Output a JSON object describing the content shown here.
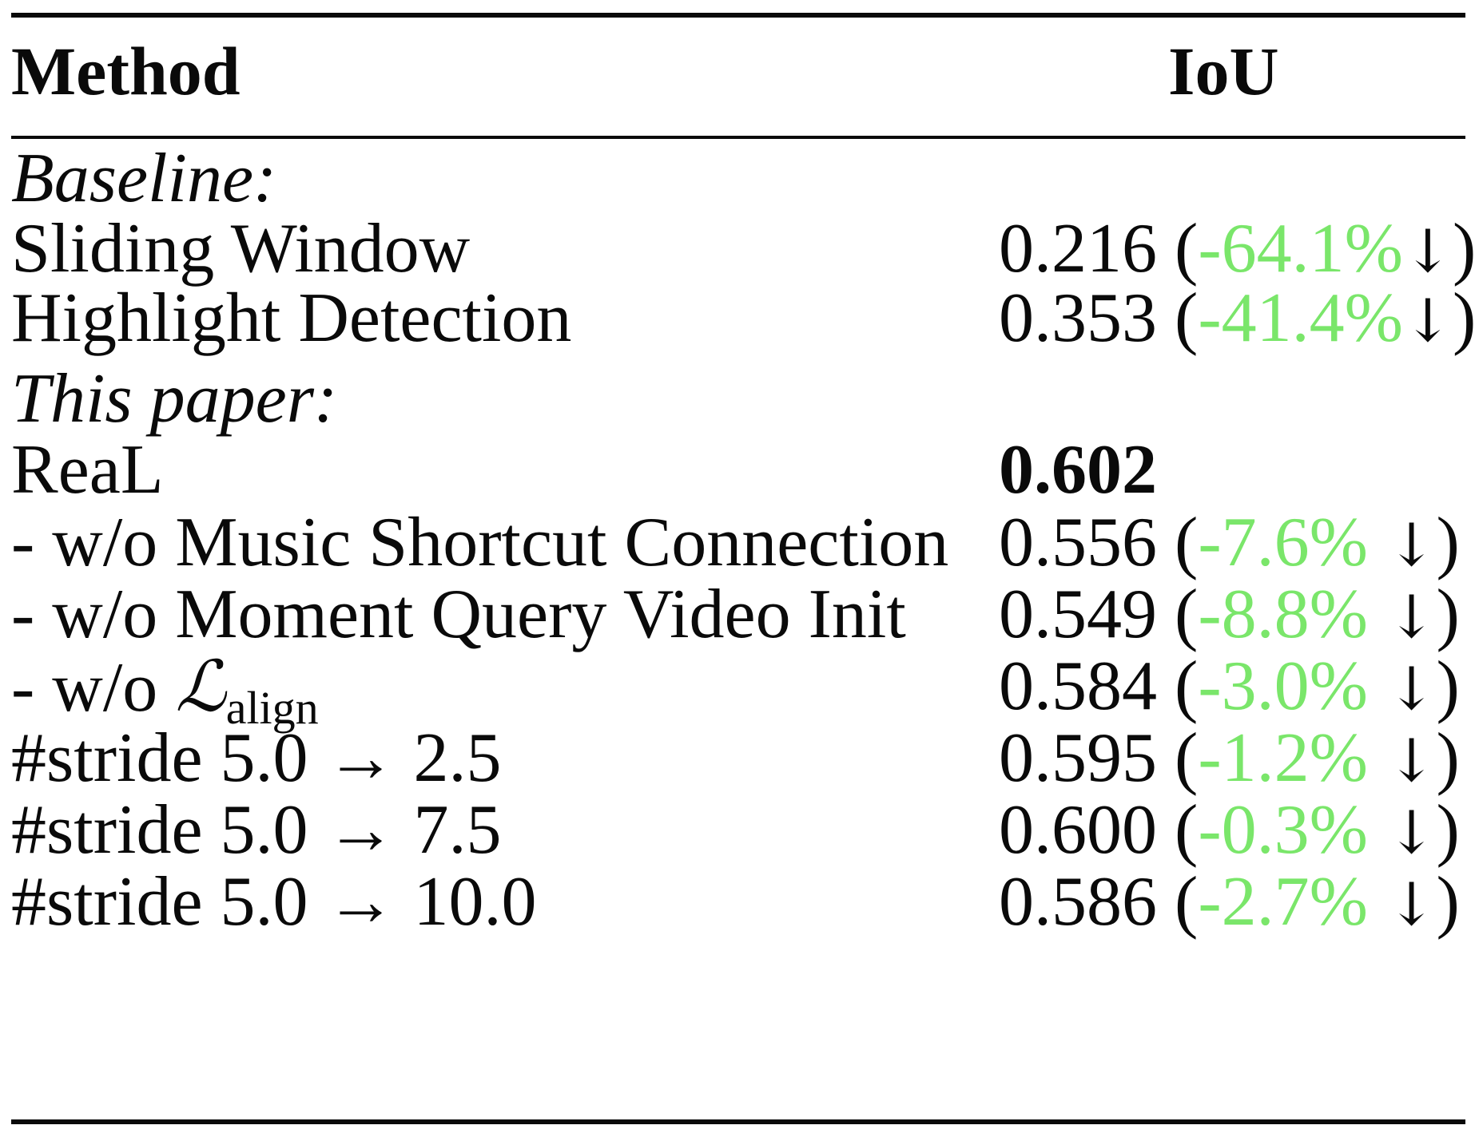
{
  "table": {
    "header": {
      "method": "Method",
      "iou": "IoU"
    },
    "sections": {
      "baseline": "Baseline:",
      "this_paper": "This paper:"
    },
    "rows": [
      {
        "method": "Sliding Window",
        "iou": "0.216",
        "open": "(",
        "delta": "-64.1%",
        "arrow": "↓",
        "close": ")"
      },
      {
        "method": "Highlight Detection",
        "iou": "0.353",
        "open": "(",
        "delta": "-41.4%",
        "arrow": "↓",
        "close": ")"
      },
      {
        "method": "ReaL",
        "iou": "0.602"
      },
      {
        "method": "- w/o Music Shortcut Connection",
        "iou": "0.556",
        "open": "(",
        "delta": "-7.6%",
        "arrow": " ↓",
        "close": ")"
      },
      {
        "method": "- w/o Moment Query Video Init",
        "iou": "0.549",
        "open": "(",
        "delta": "-8.8%",
        "arrow": " ↓",
        "close": ")"
      },
      {
        "method_prefix": "- w/o ",
        "method_symbol": "ℒ",
        "method_sub": "align",
        "iou": "0.584",
        "open": "(",
        "delta": "-3.0%",
        "arrow": " ↓",
        "close": ")"
      },
      {
        "method": "#stride 5.0 → 2.5",
        "iou": "0.595",
        "open": "(",
        "delta": "-1.2%",
        "arrow": " ↓",
        "close": ")"
      },
      {
        "method": "#stride 5.0 → 7.5",
        "iou": "0.600",
        "open": "(",
        "delta": "-0.3%",
        "arrow": " ↓",
        "close": ")"
      },
      {
        "method": "#stride 5.0 → 10.0",
        "iou": "0.586",
        "open": "(",
        "delta": "-2.7%",
        "arrow": " ↓",
        "close": ")"
      }
    ]
  },
  "colors": {
    "delta": "#7ae66a",
    "text": "#0a0a0a"
  }
}
